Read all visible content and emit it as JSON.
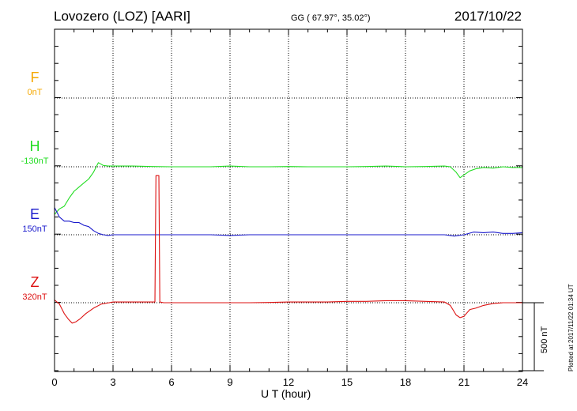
{
  "header": {
    "station": "Lovozero (LOZ)  [AARI]",
    "coords": "GG ( 67.97°,  35.02°)",
    "date": "2017/10/22"
  },
  "plotted_note": "Plotted at 2017/11/22 01:34 UT",
  "scale_label": "500 nT",
  "colors": {
    "F": "#f5a800",
    "H": "#22dd22",
    "E": "#1a1acc",
    "Z": "#dd1111"
  },
  "chart_data": {
    "type": "line",
    "xlabel": "U T (hour)",
    "xlim": [
      0,
      24
    ],
    "xticks": [
      "0",
      "3",
      "6",
      "9",
      "12",
      "15",
      "18",
      "21",
      "24"
    ],
    "y_units": "nT",
    "scale_bar_nT": 500,
    "series": [
      {
        "name": "F",
        "baseline_label": "0nT",
        "color": "#f5a800",
        "x": [],
        "y": []
      },
      {
        "name": "H",
        "baseline_label": "-130nT",
        "color": "#22dd22",
        "x": [
          0,
          0.25,
          0.5,
          0.75,
          1.0,
          1.25,
          1.5,
          1.75,
          2.0,
          2.25,
          2.5,
          2.75,
          3,
          4,
          5,
          6,
          7,
          8,
          9,
          10,
          11,
          12,
          13,
          14,
          15,
          16,
          17,
          18,
          19,
          20,
          20.3,
          20.6,
          20.8,
          21.0,
          21.3,
          21.6,
          22,
          22.5,
          23,
          23.5,
          24
        ],
        "y": [
          -350,
          -310,
          -290,
          -230,
          -180,
          -150,
          -120,
          -90,
          -40,
          30,
          10,
          5,
          5,
          5,
          2,
          0,
          0,
          0,
          5,
          0,
          0,
          2,
          0,
          0,
          0,
          2,
          5,
          0,
          2,
          5,
          0,
          -40,
          -80,
          -60,
          -30,
          -15,
          -5,
          -10,
          0,
          -5,
          -5
        ]
      },
      {
        "name": "E",
        "baseline_label": "150nT",
        "color": "#1a1acc",
        "x": [
          0,
          0.25,
          0.5,
          0.75,
          1.0,
          1.25,
          1.5,
          1.75,
          2.0,
          2.25,
          2.5,
          2.75,
          3,
          4,
          5,
          6,
          7,
          8,
          9,
          10,
          11,
          12,
          13,
          14,
          15,
          16,
          17,
          18,
          19,
          20,
          20.5,
          21,
          21.5,
          22,
          22.5,
          23,
          23.5,
          24
        ],
        "y": [
          200,
          130,
          100,
          100,
          90,
          90,
          70,
          60,
          30,
          10,
          0,
          -5,
          0,
          0,
          0,
          0,
          0,
          0,
          -5,
          0,
          0,
          0,
          0,
          0,
          0,
          0,
          0,
          0,
          0,
          0,
          -10,
          0,
          20,
          15,
          20,
          10,
          10,
          15
        ]
      },
      {
        "name": "Z",
        "baseline_label": "320nT",
        "color": "#dd1111",
        "x": [
          0,
          0.25,
          0.5,
          0.7,
          0.9,
          1.1,
          1.3,
          1.6,
          2.0,
          2.4,
          2.8,
          3,
          4,
          5,
          5.15,
          5.2,
          5.35,
          5.4,
          5.6,
          6,
          7,
          8,
          9,
          10,
          11,
          12,
          13,
          14,
          15,
          16,
          17,
          18,
          19,
          20,
          20.3,
          20.6,
          20.8,
          21.0,
          21.3,
          21.6,
          22,
          22.5,
          23,
          23.5,
          24
        ],
        "y": [
          20,
          -10,
          -80,
          -120,
          -150,
          -140,
          -120,
          -80,
          -40,
          -10,
          0,
          5,
          5,
          5,
          5,
          935,
          935,
          5,
          0,
          0,
          0,
          0,
          0,
          0,
          2,
          5,
          5,
          5,
          10,
          10,
          15,
          15,
          10,
          5,
          -20,
          -90,
          -110,
          -100,
          -50,
          -40,
          -20,
          -5,
          0,
          0,
          0
        ]
      }
    ]
  }
}
